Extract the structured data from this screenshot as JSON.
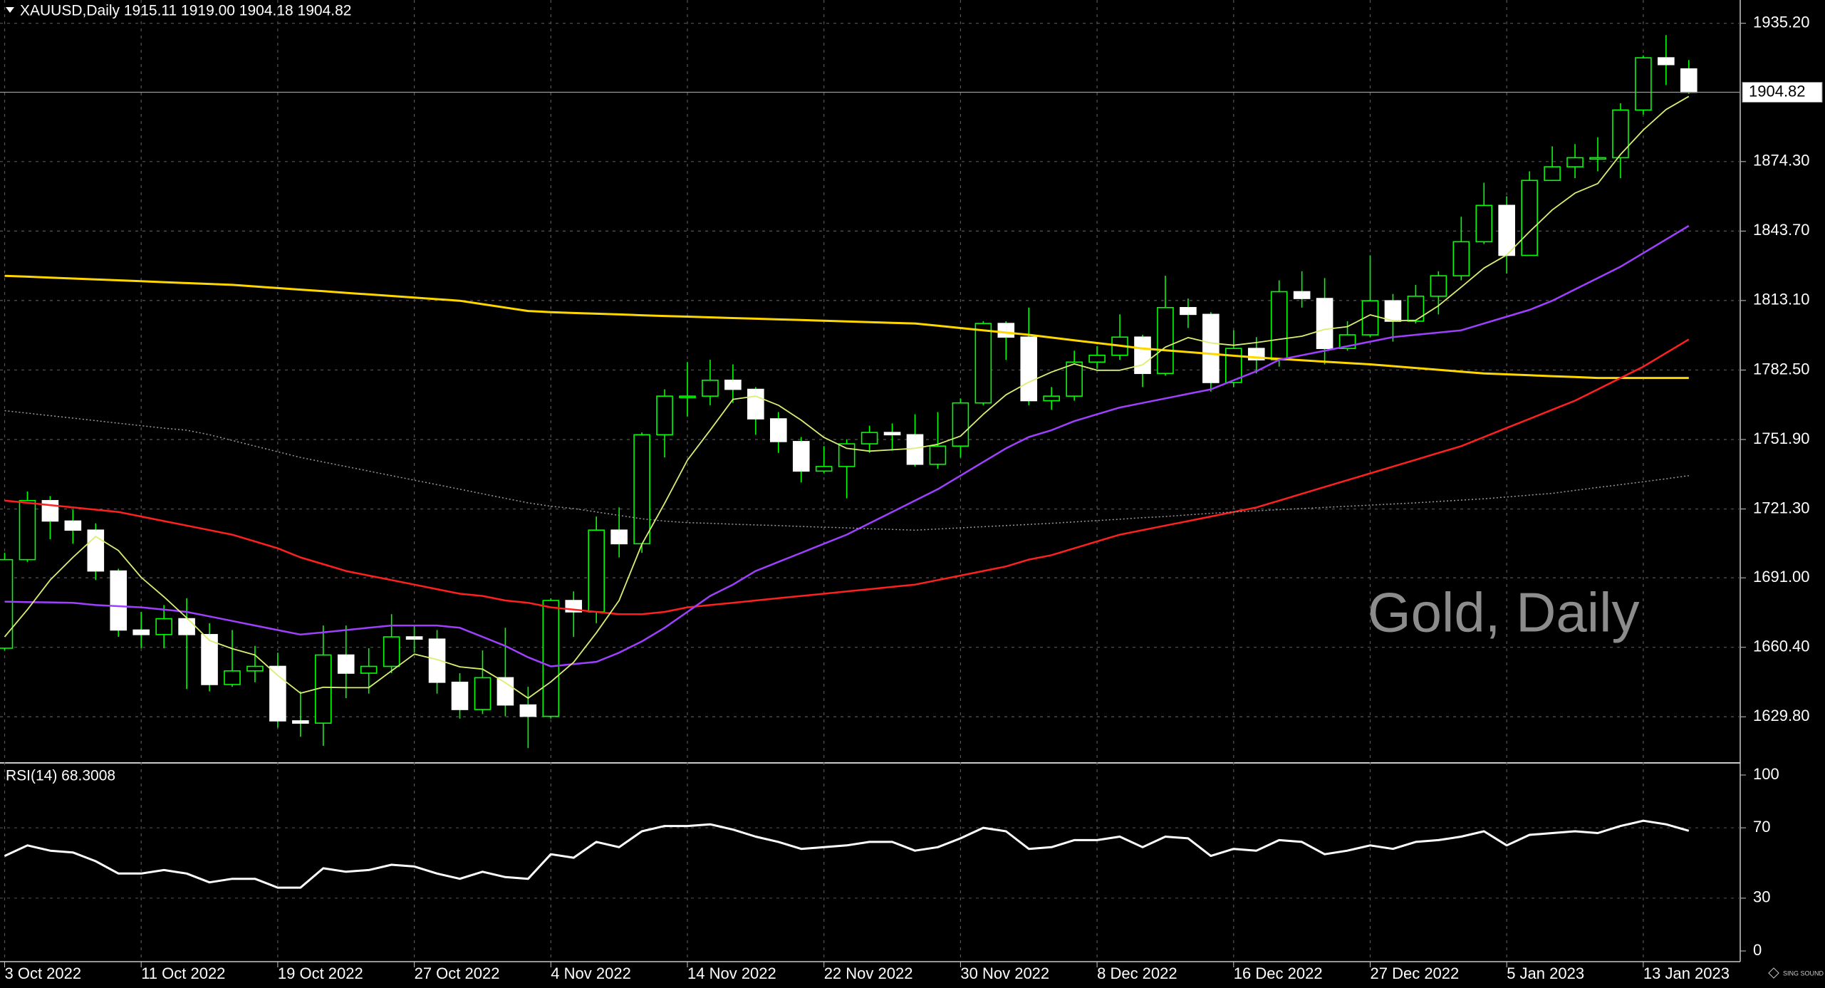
{
  "chart_data": {
    "type": "candlestick",
    "title": "XAUUSD,Daily  1915.11 1919.00 1904.18 1904.82",
    "watermark": "Gold, Daily",
    "categories": [
      "3 Oct 2022",
      null,
      null,
      null,
      null,
      null,
      "11 Oct 2022",
      null,
      null,
      null,
      null,
      null,
      "19 Oct 2022",
      null,
      null,
      null,
      null,
      null,
      "27 Oct 2022",
      null,
      null,
      null,
      null,
      null,
      "4 Nov 2022",
      null,
      null,
      null,
      null,
      null,
      "14 Nov 2022",
      null,
      null,
      null,
      null,
      null,
      "22 Nov 2022",
      null,
      null,
      null,
      null,
      null,
      "30 Nov 2022",
      null,
      null,
      null,
      null,
      null,
      "8 Dec 2022",
      null,
      null,
      null,
      null,
      null,
      "16 Dec 2022",
      null,
      null,
      null,
      null,
      null,
      "27 Dec 2022",
      null,
      null,
      null,
      null,
      null,
      "5 Jan 2023",
      null,
      null,
      null,
      null,
      null,
      "13 Jan 2023",
      null,
      null
    ],
    "open": [
      1660,
      1699,
      1725,
      1716,
      1712,
      1694,
      1668,
      1666,
      1673,
      1666,
      1644,
      1650,
      1652,
      1628,
      1627,
      1657,
      1649,
      1652,
      1665,
      1664,
      1645,
      1633,
      1647,
      1635,
      1630,
      1681,
      1676,
      1712,
      1706,
      1754,
      1771,
      1771,
      1778,
      1774,
      1761,
      1751,
      1738,
      1740,
      1750,
      1755,
      1754,
      1741,
      1749,
      1768,
      1803,
      1797,
      1769,
      1771,
      1786,
      1789,
      1797,
      1781,
      1810,
      1807,
      1777,
      1792,
      1787,
      1817,
      1814,
      1792,
      1798,
      1813,
      1804,
      1815,
      1824,
      1839,
      1855,
      1833,
      1866,
      1872,
      1876,
      1876,
      1897,
      1920,
      1915.11
    ],
    "high": [
      1702,
      1729,
      1727,
      1721,
      1715,
      1695,
      1676,
      1679,
      1682,
      1671,
      1668,
      1661,
      1658,
      1641,
      1670,
      1670,
      1660,
      1675,
      1670,
      1668,
      1649,
      1659,
      1669,
      1643,
      1682,
      1685,
      1718,
      1722,
      1755,
      1774,
      1786,
      1787,
      1785,
      1775,
      1764,
      1753,
      1749,
      1752,
      1758,
      1759,
      1763,
      1764,
      1770,
      1804,
      1804,
      1810,
      1775,
      1791,
      1793,
      1807,
      1798,
      1824,
      1814,
      1808,
      1800,
      1797,
      1822,
      1826,
      1823,
      1804,
      1833,
      1816,
      1820,
      1826,
      1850,
      1865,
      1859,
      1870,
      1881,
      1882,
      1885,
      1900,
      1921,
      1930,
      1919
    ],
    "low": [
      1659,
      1698,
      1708,
      1706,
      1690,
      1665,
      1660,
      1660,
      1642,
      1641,
      1643,
      1645,
      1625,
      1621,
      1617,
      1638,
      1640,
      1649,
      1658,
      1640,
      1629,
      1631,
      1630,
      1616,
      1629,
      1665,
      1671,
      1700,
      1702,
      1744,
      1762,
      1767,
      1768,
      1754,
      1746,
      1733,
      1737,
      1726,
      1746,
      1747,
      1740,
      1739,
      1744,
      1767,
      1787,
      1767,
      1765,
      1769,
      1783,
      1787,
      1775,
      1780,
      1801,
      1773,
      1775,
      1781,
      1784,
      1810,
      1785,
      1791,
      1797,
      1795,
      1803,
      1807,
      1822,
      1838,
      1825,
      1833,
      1866,
      1867,
      1870,
      1867,
      1895,
      1908,
      1904.18
    ],
    "close": [
      1699,
      1725,
      1716,
      1712,
      1694,
      1668,
      1666,
      1673,
      1666,
      1644,
      1650,
      1652,
      1628,
      1627,
      1657,
      1649,
      1652,
      1665,
      1664,
      1645,
      1633,
      1647,
      1635,
      1630,
      1681,
      1676,
      1712,
      1706,
      1754,
      1771,
      1771,
      1778,
      1774,
      1761,
      1751,
      1738,
      1740,
      1750,
      1755,
      1754,
      1741,
      1749,
      1768,
      1803,
      1797,
      1769,
      1771,
      1786,
      1789,
      1797,
      1781,
      1810,
      1807,
      1777,
      1792,
      1787,
      1817,
      1814,
      1792,
      1798,
      1813,
      1804,
      1815,
      1824,
      1839,
      1855,
      1833,
      1866,
      1872,
      1876,
      1876,
      1897,
      1920,
      1917,
      1904.82
    ],
    "up_color": "#00ff00",
    "down_color": "#ffffff",
    "ylim": [
      1609.8,
      1945.45
    ],
    "yticks": [
      {
        "value": 1935.2,
        "label": "1935.20"
      },
      {
        "value": 1874.3,
        "label": "1874.30"
      },
      {
        "value": 1843.7,
        "label": "1843.70"
      },
      {
        "value": 1813.1,
        "label": "1813.10"
      },
      {
        "value": 1782.5,
        "label": "1782.50"
      },
      {
        "value": 1751.9,
        "label": "1751.90"
      },
      {
        "value": 1721.3,
        "label": "1721.30"
      },
      {
        "value": 1691,
        "label": "1691.00"
      },
      {
        "value": 1660.4,
        "label": "1660.40"
      },
      {
        "value": 1629.8,
        "label": "1629.80"
      }
    ],
    "grid": true,
    "indicators": [
      {
        "color": "#ffd700",
        "width": 3,
        "line_style": "solid",
        "values": [
          1824.0,
          1823.6,
          1823.2,
          1822.8,
          1822.4,
          1822.0,
          1821.6,
          1821.2,
          1820.8,
          1820.4,
          1820.0,
          1819.3,
          1818.6,
          1817.9,
          1817.2,
          1816.5,
          1815.8,
          1815.1,
          1814.4,
          1813.7,
          1813.0,
          1811.5,
          1810.0,
          1808.5,
          1808.0,
          1807.6,
          1807.3,
          1807.0,
          1806.6,
          1806.3,
          1806.0,
          1805.7,
          1805.4,
          1805.1,
          1804.8,
          1804.5,
          1804.2,
          1803.9,
          1803.6,
          1803.3,
          1803.0,
          1802.0,
          1801.0,
          1800.0,
          1799.0,
          1798.0,
          1796.8,
          1795.6,
          1794.4,
          1793.2,
          1792.0,
          1791.2,
          1790.4,
          1789.6,
          1788.8,
          1788.0,
          1787.4,
          1786.8,
          1786.2,
          1785.6,
          1785.0,
          1784.2,
          1783.4,
          1782.6,
          1781.8,
          1781.0,
          1780.6,
          1780.2,
          1779.8,
          1779.4,
          1779.0,
          1779.0,
          1779.0,
          1779.0,
          1779.0
        ]
      },
      {
        "color": "#ff2020",
        "width": 2.5,
        "line_style": "solid",
        "values": [
          1725,
          1724,
          1723,
          1722,
          1721,
          1720,
          1718,
          1716,
          1714,
          1712,
          1710,
          1707,
          1704,
          1700,
          1697,
          1694,
          1692,
          1690,
          1688,
          1686,
          1684,
          1683,
          1681,
          1680,
          1678,
          1677,
          1676,
          1675,
          1675,
          1676,
          1678,
          1679,
          1680,
          1681,
          1682,
          1683,
          1684,
          1685,
          1686,
          1687,
          1688,
          1690,
          1692,
          1694,
          1696,
          1699,
          1701,
          1704,
          1707,
          1710,
          1712,
          1714,
          1716,
          1718,
          1720,
          1722,
          1725,
          1728,
          1731,
          1734,
          1737,
          1740,
          1743,
          1746,
          1749,
          1753,
          1757,
          1761,
          1765,
          1769,
          1774,
          1779,
          1784,
          1790,
          1796
        ]
      },
      {
        "color": "#a040ff",
        "width": 2.5,
        "line_style": "solid",
        "values": [
          1680.5,
          1680.3,
          1680.2,
          1680,
          1679,
          1678.5,
          1678,
          1677,
          1676,
          1674,
          1672,
          1670,
          1668,
          1666,
          1667,
          1668,
          1669,
          1670,
          1670,
          1670,
          1669,
          1665,
          1661,
          1656,
          1652,
          1653,
          1654,
          1658,
          1663,
          1669,
          1676,
          1683,
          1688,
          1694,
          1698,
          1702,
          1706,
          1710,
          1715,
          1720,
          1725,
          1730,
          1736,
          1742,
          1748,
          1753,
          1756,
          1760,
          1763,
          1766,
          1768,
          1770,
          1772,
          1774,
          1778,
          1782,
          1787,
          1789,
          1791,
          1793,
          1795,
          1797,
          1798,
          1799,
          1800,
          1803,
          1806,
          1809,
          1813,
          1818,
          1823,
          1828,
          1834,
          1840,
          1846
        ]
      },
      {
        "color": "#9a9a9a",
        "width": 1.5,
        "line_style": "dotted",
        "values": [
          1764.6,
          1763.5,
          1762.4,
          1761.3,
          1760.2,
          1759.1,
          1758,
          1756.9,
          1756,
          1754,
          1751.5,
          1749,
          1746.5,
          1744,
          1742,
          1740,
          1738,
          1736,
          1734,
          1732,
          1730,
          1728,
          1726,
          1724,
          1722.5,
          1721.5,
          1720,
          1718.5,
          1717,
          1716,
          1715.3,
          1715,
          1714.6,
          1714.3,
          1714,
          1713.6,
          1713.3,
          1713,
          1712.6,
          1712.3,
          1712,
          1712.5,
          1713,
          1713.5,
          1714,
          1714.5,
          1715,
          1715.6,
          1716.2,
          1716.8,
          1717.5,
          1718,
          1718.7,
          1719.4,
          1720,
          1720.5,
          1721,
          1721.5,
          1722,
          1722.5,
          1723,
          1723.5,
          1724,
          1724.6,
          1725.2,
          1725.8,
          1726.6,
          1727.4,
          1728.2,
          1729.5,
          1730.8,
          1732,
          1733.3,
          1734.6,
          1736
        ]
      },
      {
        "color": "#d8f070",
        "width": 1.8,
        "line_style": "solid",
        "values": [
          1665,
          1677,
          1690,
          1700,
          1709.2,
          1703,
          1691.2,
          1682.6,
          1673.4,
          1663.4,
          1659.8,
          1657,
          1648,
          1640.2,
          1642.8,
          1642.6,
          1642.6,
          1650,
          1657.4,
          1655,
          1651.8,
          1650.8,
          1644.8,
          1638,
          1645.2,
          1653.8,
          1666.8,
          1681,
          1705.8,
          1723.8,
          1742.8,
          1756,
          1769.6,
          1771,
          1767,
          1760.4,
          1752.8,
          1748,
          1746.8,
          1747.4,
          1748,
          1749.8,
          1753.4,
          1763,
          1771.6,
          1777.2,
          1781.6,
          1785.2,
          1782.4,
          1782.4,
          1784.8,
          1792.6,
          1796.8,
          1794.4,
          1793.4,
          1794.6,
          1796,
          1797.4,
          1800.4,
          1801.6,
          1806.8,
          1804.2,
          1804.4,
          1810.8,
          1819,
          1827.4,
          1833.2,
          1843.4,
          1853,
          1860.4,
          1864.6,
          1877.4,
          1888.2,
          1897.2,
          1903.0
        ]
      }
    ],
    "rsi": {
      "label": "RSI(14) 68.3008",
      "color": "#ffffff",
      "ylim": [
        0,
        100
      ],
      "yticks": [
        100,
        70,
        30,
        0
      ],
      "levels": [
        70,
        30
      ],
      "values": [
        54,
        60,
        57,
        56,
        51,
        44,
        44,
        46,
        44,
        39,
        41,
        41,
        36,
        36,
        47,
        45,
        46,
        49,
        48,
        44,
        41,
        45,
        42,
        41,
        55,
        53,
        62,
        59,
        68,
        71,
        71,
        72,
        69,
        65,
        62,
        58,
        59,
        60,
        62,
        62,
        57,
        59,
        64,
        70,
        68,
        58,
        59,
        63,
        63,
        65,
        59,
        65,
        64,
        54,
        58,
        57,
        63,
        62,
        55,
        57,
        60,
        58,
        62,
        63,
        65,
        68,
        60,
        66,
        67,
        68,
        67,
        71,
        74,
        72,
        68.3008
      ]
    }
  }
}
